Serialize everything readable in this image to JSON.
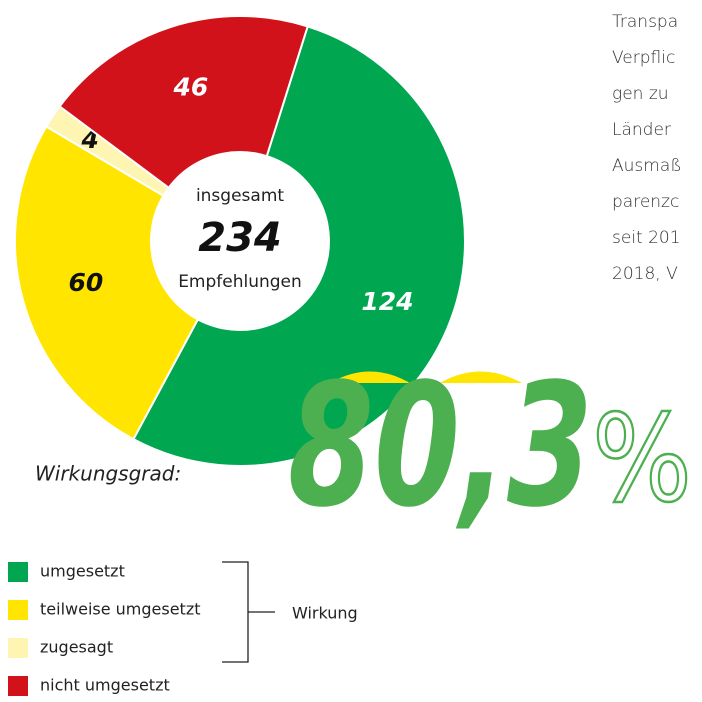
{
  "chart_data": {
    "type": "pie",
    "categories": [
      "umgesetzt",
      "teilweise umgesetzt",
      "zugesagt",
      "nicht umgesetzt"
    ],
    "values": [
      124,
      60,
      4,
      46
    ],
    "colors": [
      "#00a650",
      "#ffe500",
      "#fff5b3",
      "#d2121b"
    ],
    "center_label_top": "insgesamt",
    "center_total": "234",
    "center_label_bottom": "Empfehlungen",
    "legend_title": "Wirkungsgrad:",
    "bracket_label": "Wirkung",
    "highlight_number": "80,3",
    "highlight_unit": "%"
  },
  "side_text": [
    "Transpa",
    "Verpflic",
    "gen zu",
    "Länder",
    "Ausmaß",
    "parenzc",
    "seit 201",
    "2018, V"
  ]
}
